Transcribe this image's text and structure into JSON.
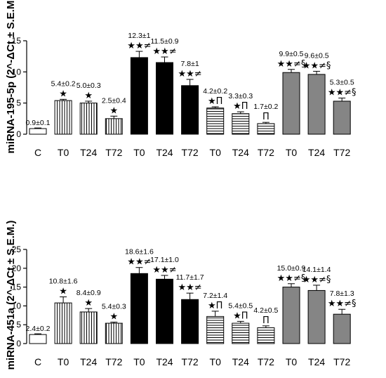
{
  "chart_data": [
    {
      "type": "bar",
      "ylabel": "miRNA-195-5p (2^-ΔCt ± S.E.M.)",
      "ylim": [
        0,
        15
      ],
      "yticks": [
        0,
        5,
        10,
        15
      ],
      "categories": [
        "C",
        "T0",
        "T24",
        "T72",
        "T0",
        "T24",
        "T72",
        "T0",
        "T24",
        "T72",
        "T0",
        "T24",
        "T72"
      ],
      "values": [
        0.9,
        5.4,
        5.0,
        2.5,
        12.3,
        11.5,
        7.8,
        4.2,
        3.3,
        1.7,
        9.9,
        9.6,
        5.3
      ],
      "errors": [
        0.1,
        0.2,
        0.3,
        0.4,
        1.0,
        0.9,
        1.0,
        0.2,
        0.3,
        0.2,
        0.5,
        0.5,
        0.5
      ],
      "labels": [
        "0.9±0.1",
        "5.4±0.2",
        "5.0±0.3",
        "2.5±0.4",
        "12.3±1",
        "11.5±0.9",
        "7.8±1",
        "4.2±0.2",
        "3.3±0.3",
        "1.7±0.2",
        "9.9±0.5",
        "9.6±0.5",
        "5.3±0.5"
      ],
      "markers": [
        "",
        "★",
        "★",
        "★",
        "★★≠",
        "★★≠",
        "★★≠",
        "★Π",
        "★Π",
        "Π",
        "★★≠§",
        "★★≠§",
        "★★≠§"
      ],
      "fills": [
        "white",
        "vertical",
        "vertical",
        "vertical",
        "black",
        "black",
        "black",
        "horizontal",
        "horizontal",
        "horizontal",
        "gray",
        "gray",
        "gray"
      ]
    },
    {
      "type": "bar",
      "ylabel": "miRNA-451a (2^-ΔCt ± S.E.M.)",
      "ylim": [
        0,
        25
      ],
      "yticks": [
        0,
        5,
        10,
        15,
        20,
        25
      ],
      "categories": [
        "C",
        "T0",
        "T24",
        "T72",
        "T0",
        "T24",
        "T72",
        "T0",
        "T24",
        "T72",
        "T0",
        "T24",
        "T72"
      ],
      "values": [
        2.4,
        10.8,
        8.4,
        5.4,
        18.6,
        17.1,
        11.7,
        7.2,
        5.4,
        4.2,
        15.0,
        14.1,
        7.8
      ],
      "errors": [
        0.2,
        1.6,
        0.9,
        0.3,
        1.6,
        1.0,
        1.7,
        1.4,
        0.5,
        0.5,
        0.9,
        1.4,
        1.3
      ],
      "labels": [
        "2.4±0.2",
        "10.8±1.6",
        "8.4±0.9",
        "5.4±0.3",
        "18.6±1.6",
        "17.1±1.0",
        "11.7±1.7",
        "7.2±1.4",
        "5.4±0.5",
        "4.2±0.5",
        "15.0±0.9",
        "14.1±1.4",
        "7.8±1.3"
      ],
      "markers": [
        "",
        "★",
        "★",
        "★",
        "★★≠",
        "★★≠",
        "★★≠",
        "★Π",
        "★Π",
        "Π",
        "★★≠§",
        "★★≠§",
        "★★≠§"
      ],
      "fills": [
        "white",
        "vertical",
        "vertical",
        "vertical",
        "black",
        "black",
        "black",
        "horizontal",
        "horizontal",
        "horizontal",
        "gray",
        "gray",
        "gray"
      ]
    }
  ]
}
